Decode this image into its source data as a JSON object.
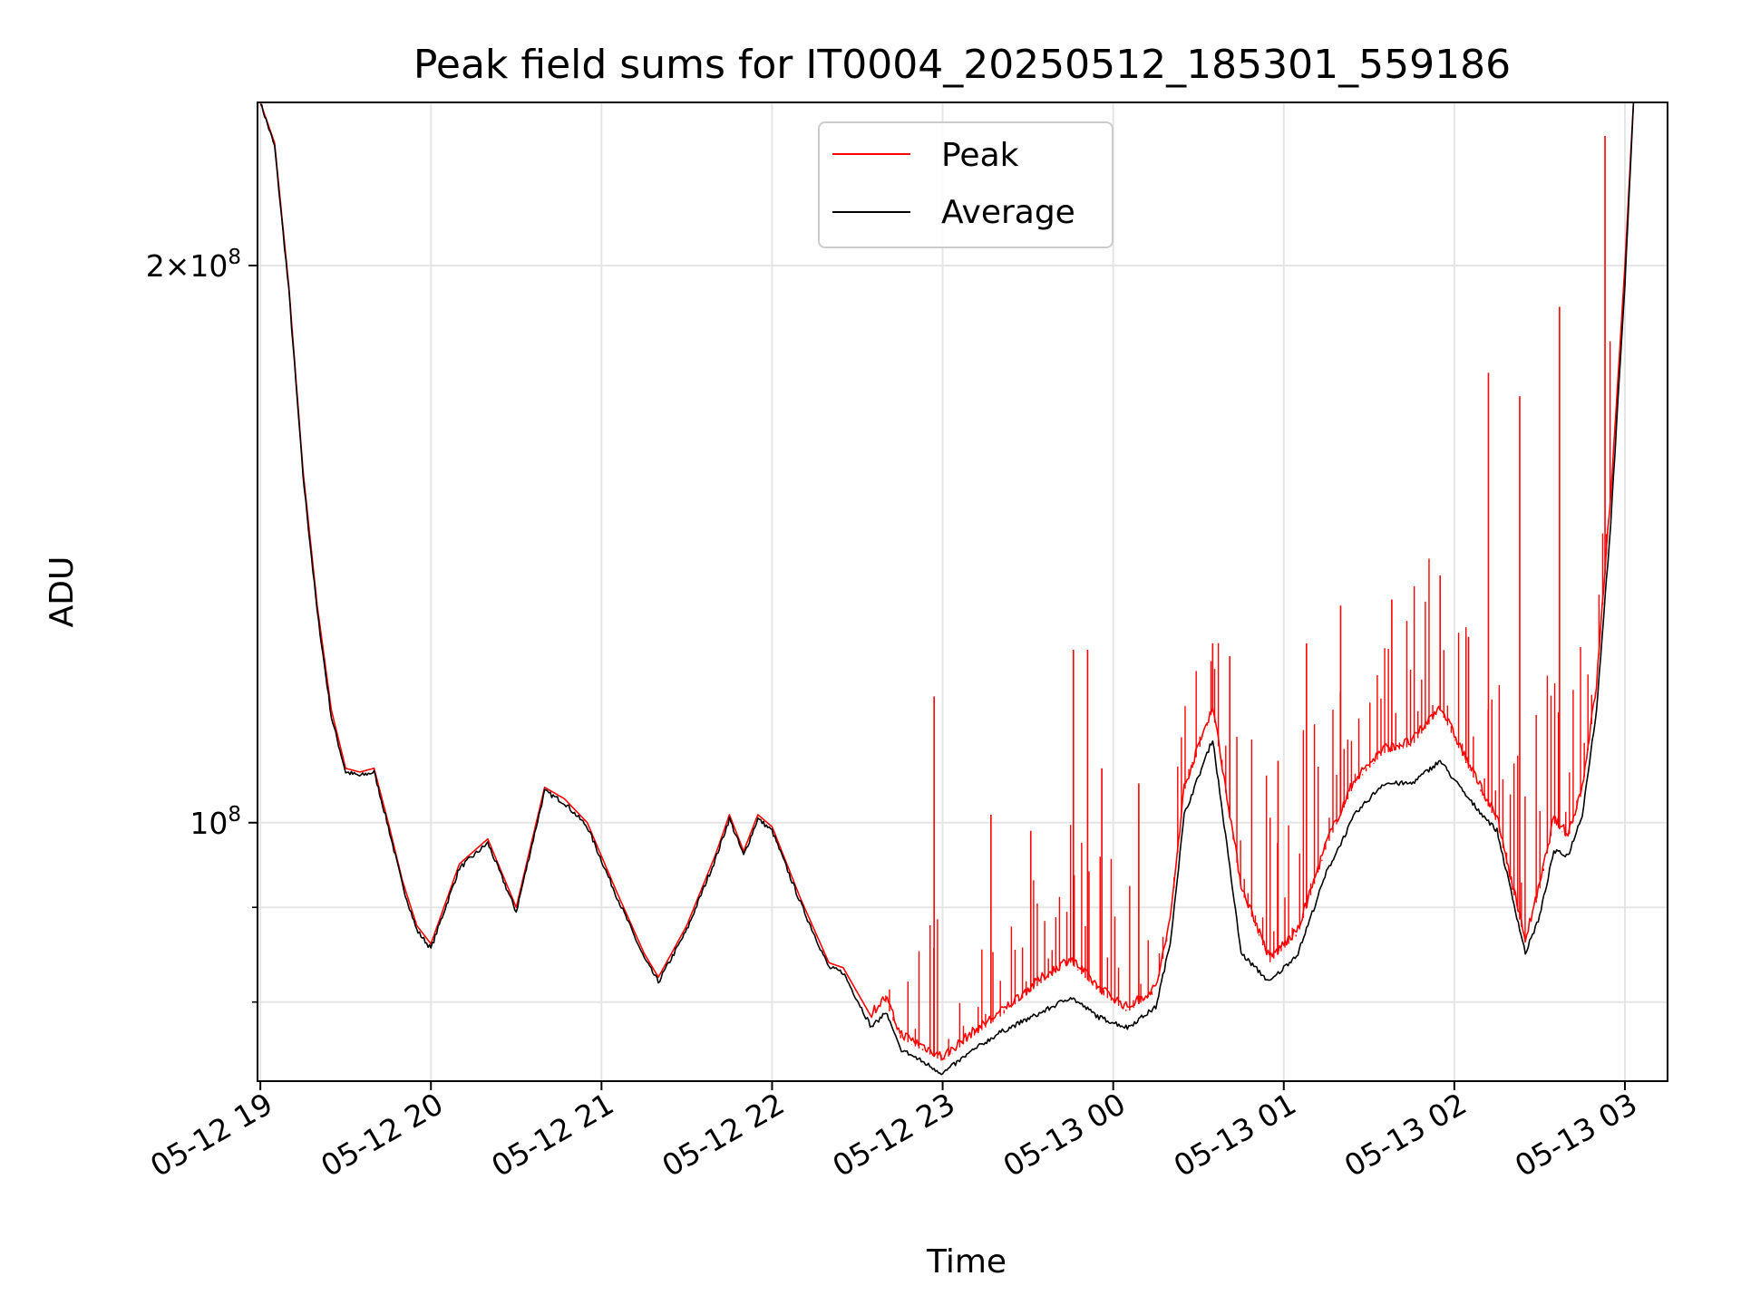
{
  "chart_data": {
    "type": "line",
    "title": "Peak field sums for IT0004_20250512_185301_559186",
    "xlabel": "Time",
    "ylabel": "ADU",
    "y_scale": "log",
    "ylim": [
      72500000,
      245000000
    ],
    "xlim": [
      "05-12 18:59",
      "05-13 03:15"
    ],
    "x_ticks": [
      "05-12 19",
      "05-12 20",
      "05-12 21",
      "05-12 22",
      "05-12 23",
      "05-13 00",
      "05-13 01",
      "05-13 02",
      "05-13 03"
    ],
    "y_major_ticks": [
      {
        "value": 100000000,
        "mantissa": "",
        "exponent": "8"
      },
      {
        "value": 200000000,
        "mantissa": "2",
        "exponent": "8"
      }
    ],
    "y_minor_ticks": [
      80000000,
      90000000
    ],
    "grid": true,
    "legend_position": "top-center",
    "colors": {
      "peak": "#ff0000",
      "average": "#000000",
      "grid": "#e5e5e5"
    },
    "series": [
      {
        "name": "Peak",
        "x": [
          "05-12 19:00",
          "05-12 19:05",
          "05-12 19:10",
          "05-12 19:15",
          "05-12 19:20",
          "05-12 19:25",
          "05-12 19:30",
          "05-12 19:35",
          "05-12 19:40",
          "05-12 19:45",
          "05-12 19:50",
          "05-12 19:55",
          "05-12 20:00",
          "05-12 20:10",
          "05-12 20:20",
          "05-12 20:30",
          "05-12 20:35",
          "05-12 20:40",
          "05-12 20:47",
          "05-12 20:55",
          "05-12 21:05",
          "05-12 21:15",
          "05-12 21:20",
          "05-12 21:30",
          "05-12 21:40",
          "05-12 21:45",
          "05-12 21:50",
          "05-12 21:55",
          "05-12 22:00",
          "05-12 22:10",
          "05-12 22:20",
          "05-12 22:25",
          "05-12 22:35",
          "05-12 22:40",
          "05-12 22:45",
          "05-12 23:00",
          "05-12 23:10",
          "05-12 23:20",
          "05-12 23:35",
          "05-12 23:45",
          "05-12 23:55",
          "05-13 00:05",
          "05-13 00:15",
          "05-13 00:20",
          "05-13 00:25",
          "05-13 00:35",
          "05-13 00:45",
          "05-13 00:55",
          "05-13 01:05",
          "05-13 01:15",
          "05-13 01:25",
          "05-13 01:35",
          "05-13 01:45",
          "05-13 01:55",
          "05-13 02:05",
          "05-13 02:15",
          "05-13 02:25",
          "05-13 02:30",
          "05-13 02:35",
          "05-13 02:40",
          "05-13 02:45",
          "05-13 02:50",
          "05-13 02:55",
          "05-13 03:00",
          "05-13 03:03"
        ],
        "values": [
          245000000,
          233000000,
          195000000,
          155000000,
          131000000,
          115000000,
          107000000,
          106500000,
          107000000,
          100000000,
          93000000,
          88000000,
          86000000,
          95000000,
          98000000,
          90000000,
          97000000,
          104500000,
          103000000,
          100000000,
          92000000,
          85000000,
          82500000,
          88000000,
          96000000,
          101000000,
          96500000,
          101000000,
          99500000,
          91000000,
          84000000,
          83500000,
          78500000,
          80000000,
          76500000,
          74300000,
          76500000,
          78500000,
          82000000,
          84000000,
          81000000,
          79000000,
          81000000,
          88000000,
          104000000,
          115000000,
          92000000,
          84000000,
          87000000,
          97000000,
          105000000,
          109000000,
          110000000,
          115000000,
          107000000,
          100000000,
          86000000,
          92000000,
          100000000,
          98000000,
          104000000,
          118000000,
          150000000,
          200000000,
          245000000
        ],
        "spikes": [
          {
            "x": "05-12 22:57",
            "value": 117000000
          },
          {
            "x": "05-12 23:17",
            "value": 101000000
          },
          {
            "x": "05-12 23:31",
            "value": 99000000
          },
          {
            "x": "05-12 23:46",
            "value": 124000000
          },
          {
            "x": "05-12 23:51",
            "value": 124000000
          },
          {
            "x": "05-12 23:56",
            "value": 107000000
          },
          {
            "x": "05-13 00:09",
            "value": 105000000
          },
          {
            "x": "05-13 00:35",
            "value": 125000000
          },
          {
            "x": "05-13 00:41",
            "value": 123000000
          },
          {
            "x": "05-13 00:58",
            "value": 108000000
          },
          {
            "x": "05-13 01:08",
            "value": 125000000
          },
          {
            "x": "05-13 01:20",
            "value": 131000000
          },
          {
            "x": "05-13 01:38",
            "value": 132000000
          },
          {
            "x": "05-13 01:55",
            "value": 136000000
          },
          {
            "x": "05-13 02:05",
            "value": 126000000
          },
          {
            "x": "05-13 02:12",
            "value": 175000000
          },
          {
            "x": "05-13 02:23",
            "value": 170000000
          },
          {
            "x": "05-13 02:37",
            "value": 190000000
          },
          {
            "x": "05-13 02:53",
            "value": 235000000
          }
        ]
      },
      {
        "name": "Average",
        "x": [
          "05-12 19:00",
          "05-12 19:05",
          "05-12 19:10",
          "05-12 19:15",
          "05-12 19:20",
          "05-12 19:25",
          "05-12 19:30",
          "05-12 19:35",
          "05-12 19:40",
          "05-12 19:45",
          "05-12 19:50",
          "05-12 19:55",
          "05-12 20:00",
          "05-12 20:10",
          "05-12 20:20",
          "05-12 20:30",
          "05-12 20:35",
          "05-12 20:40",
          "05-12 20:47",
          "05-12 20:55",
          "05-12 21:05",
          "05-12 21:15",
          "05-12 21:20",
          "05-12 21:30",
          "05-12 21:40",
          "05-12 21:45",
          "05-12 21:50",
          "05-12 21:55",
          "05-12 22:00",
          "05-12 22:10",
          "05-12 22:20",
          "05-12 22:25",
          "05-12 22:35",
          "05-12 22:40",
          "05-12 22:45",
          "05-12 23:00",
          "05-12 23:10",
          "05-12 23:20",
          "05-12 23:35",
          "05-12 23:45",
          "05-12 23:55",
          "05-13 00:05",
          "05-13 00:15",
          "05-13 00:20",
          "05-13 00:25",
          "05-13 00:35",
          "05-13 00:45",
          "05-13 00:55",
          "05-13 01:05",
          "05-13 01:15",
          "05-13 01:25",
          "05-13 01:35",
          "05-13 01:45",
          "05-13 01:55",
          "05-13 02:05",
          "05-13 02:15",
          "05-13 02:25",
          "05-13 02:30",
          "05-13 02:35",
          "05-13 02:40",
          "05-13 02:45",
          "05-13 02:50",
          "05-13 02:55",
          "05-13 03:00",
          "05-13 03:03"
        ],
        "values": [
          245000000,
          232000000,
          194000000,
          154000000,
          130000000,
          114000000,
          106500000,
          106000000,
          106500000,
          99500000,
          92500000,
          87500000,
          85500000,
          94500000,
          97500000,
          89500000,
          96500000,
          104000000,
          102500000,
          99500000,
          91500000,
          84500000,
          82000000,
          87500000,
          95500000,
          100500000,
          96000000,
          100500000,
          99000000,
          90500000,
          83500000,
          83000000,
          77500000,
          79000000,
          75500000,
          73200000,
          75200000,
          77000000,
          79000000,
          80500000,
          78500000,
          77500000,
          79500000,
          86000000,
          101000000,
          111000000,
          85000000,
          82000000,
          85000000,
          94000000,
          101000000,
          105000000,
          105000000,
          108000000,
          103000000,
          99000000,
          85000000,
          89000000,
          96500000,
          96000000,
          101000000,
          115000000,
          145000000,
          195000000,
          245000000
        ]
      }
    ]
  }
}
